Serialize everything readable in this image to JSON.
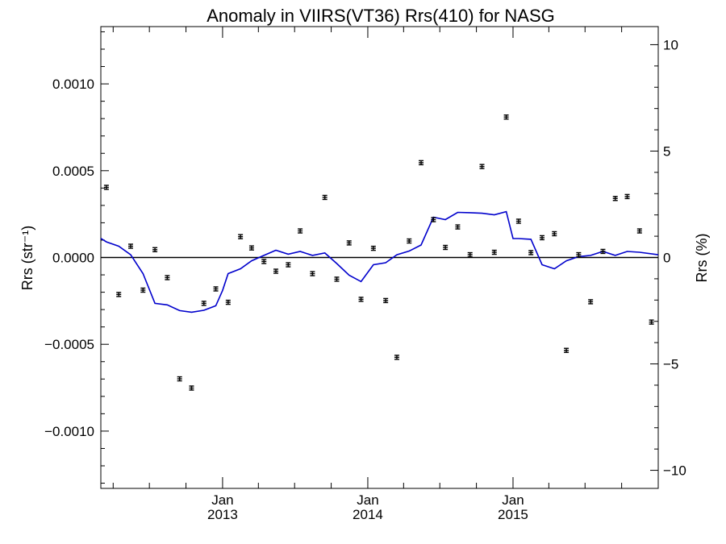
{
  "chart_data": {
    "type": "scatter",
    "title": "Anomaly in VIIRS(VT36) Rrs(410) for NASG",
    "ylabel": "Rrs (str⁻¹)",
    "y2label": "Rrs (%)",
    "xlim": [
      "2012-03-01",
      "2016-01-01"
    ],
    "ylim": [
      -0.00133,
      0.00133
    ],
    "y2lim": [
      -10.85,
      10.85
    ],
    "y_ticks": [
      -0.001,
      -0.0005,
      0.0,
      0.0005,
      0.001
    ],
    "y_tick_labels": [
      "−0.0010",
      "−0.0005",
      "0.0000",
      "0.0005",
      "0.0010"
    ],
    "y2_ticks": [
      -10,
      -5,
      0,
      5,
      10
    ],
    "y2_tick_labels": [
      "−10",
      "−5",
      "0",
      "5",
      "10"
    ],
    "x_major_ticks": [
      "2013-01-01",
      "2014-01-01",
      "2015-01-01"
    ],
    "x_tick_labels": [
      {
        "month": "Jan",
        "year": "2013"
      },
      {
        "month": "Jan",
        "year": "2014"
      },
      {
        "month": "Jan",
        "year": "2015"
      }
    ],
    "colors": {
      "points": "#000000",
      "line": "#0000cc",
      "zero_line": "#000000"
    },
    "series": [
      {
        "values": [
          [
            "2012-03-15",
            0.000404
          ],
          [
            "2012-04-15",
            -0.000213
          ],
          [
            "2012-05-15",
            6.5e-05
          ],
          [
            "2012-06-15",
            -0.000188
          ],
          [
            "2012-07-15",
            4.5e-05
          ],
          [
            "2012-08-15",
            -0.000116
          ],
          [
            "2012-09-15",
            -0.000699
          ],
          [
            "2012-10-15",
            -0.000752
          ],
          [
            "2012-11-15",
            -0.000264
          ],
          [
            "2012-12-15",
            -0.000181
          ],
          [
            "2013-01-15",
            -0.000258
          ],
          [
            "2013-02-15",
            0.00012
          ],
          [
            "2013-03-15",
            5.5e-05
          ],
          [
            "2013-04-15",
            -2.3e-05
          ],
          [
            "2013-05-15",
            -7.9e-05
          ],
          [
            "2013-06-15",
            -4.2e-05
          ],
          [
            "2013-07-15",
            0.000153
          ],
          [
            "2013-08-15",
            -9.3e-05
          ],
          [
            "2013-09-15",
            0.000346
          ],
          [
            "2013-10-15",
            -0.000125
          ],
          [
            "2013-11-15",
            8.4e-05
          ],
          [
            "2013-12-15",
            -0.000241
          ],
          [
            "2014-01-15",
            5.3e-05
          ],
          [
            "2014-02-15",
            -0.000248
          ],
          [
            "2014-03-15",
            -0.000575
          ],
          [
            "2014-04-15",
            9.5e-05
          ],
          [
            "2014-05-15",
            0.000546
          ],
          [
            "2014-06-15",
            0.000218
          ],
          [
            "2014-07-15",
            5.8e-05
          ],
          [
            "2014-08-15",
            0.000176
          ],
          [
            "2014-09-15",
            1.6e-05
          ],
          [
            "2014-10-15",
            0.000524
          ],
          [
            "2014-11-15",
            3e-05
          ],
          [
            "2014-12-15",
            0.000809
          ],
          [
            "2015-01-15",
            0.000209
          ],
          [
            "2015-02-15",
            2.8e-05
          ],
          [
            "2015-03-15",
            0.000114
          ],
          [
            "2015-04-15",
            0.000137
          ],
          [
            "2015-05-15",
            -0.000535
          ],
          [
            "2015-06-15",
            1.6e-05
          ],
          [
            "2015-07-15",
            -0.000255
          ],
          [
            "2015-08-15",
            3.5e-05
          ],
          [
            "2015-09-15",
            0.00034
          ],
          [
            "2015-10-15",
            0.000351
          ],
          [
            "2015-11-15",
            0.000153
          ],
          [
            "2015-12-15",
            -0.000372
          ]
        ]
      },
      {
        "values": [
          [
            "2012-03-01",
            0.00011
          ],
          [
            "2012-03-15",
            9e-05
          ],
          [
            "2012-04-15",
            6.5e-05
          ],
          [
            "2012-05-15",
            1.6e-05
          ],
          [
            "2012-06-15",
            -9.3e-05
          ],
          [
            "2012-07-15",
            -0.000264
          ],
          [
            "2012-08-15",
            -0.000273
          ],
          [
            "2012-09-15",
            -0.000306
          ],
          [
            "2012-10-15",
            -0.000315
          ],
          [
            "2012-11-15",
            -0.000304
          ],
          [
            "2012-12-15",
            -0.000278
          ],
          [
            "2013-01-01",
            -0.00019
          ],
          [
            "2013-01-15",
            -9.3e-05
          ],
          [
            "2013-02-15",
            -6.5e-05
          ],
          [
            "2013-03-15",
            -1.9e-05
          ],
          [
            "2013-04-15",
            1.2e-05
          ],
          [
            "2013-05-15",
            4.2e-05
          ],
          [
            "2013-06-15",
            1.9e-05
          ],
          [
            "2013-07-15",
            3.5e-05
          ],
          [
            "2013-08-15",
            1.2e-05
          ],
          [
            "2013-09-15",
            2.6e-05
          ],
          [
            "2013-10-15",
            -3.5e-05
          ],
          [
            "2013-11-15",
            -0.000102
          ],
          [
            "2013-12-15",
            -0.000139
          ],
          [
            "2014-01-15",
            -4.2e-05
          ],
          [
            "2014-02-15",
            -3e-05
          ],
          [
            "2014-03-15",
            1.6e-05
          ],
          [
            "2014-04-15",
            3.7e-05
          ],
          [
            "2014-05-15",
            7.2e-05
          ],
          [
            "2014-06-15",
            0.000232
          ],
          [
            "2014-07-15",
            0.000218
          ],
          [
            "2014-08-15",
            0.00026
          ],
          [
            "2014-09-15",
            0.000258
          ],
          [
            "2014-10-15",
            0.000255
          ],
          [
            "2014-11-15",
            0.000246
          ],
          [
            "2014-12-15",
            0.000264
          ],
          [
            "2015-01-01",
            0.000109
          ],
          [
            "2015-01-15",
            0.000109
          ],
          [
            "2015-02-15",
            0.000105
          ],
          [
            "2015-03-15",
            -4.2e-05
          ],
          [
            "2015-04-15",
            -6.5e-05
          ],
          [
            "2015-05-15",
            -1.9e-05
          ],
          [
            "2015-06-15",
            5e-06
          ],
          [
            "2015-07-15",
            1.2e-05
          ],
          [
            "2015-08-15",
            3.5e-05
          ],
          [
            "2015-09-15",
            1.2e-05
          ],
          [
            "2015-10-15",
            3.5e-05
          ],
          [
            "2015-11-15",
            3e-05
          ],
          [
            "2016-01-01",
            1.6e-05
          ]
        ]
      }
    ]
  }
}
